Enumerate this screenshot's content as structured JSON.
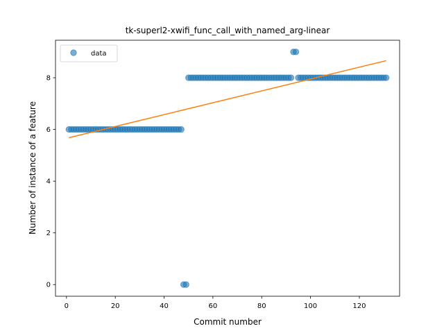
{
  "chart_data": {
    "type": "scatter",
    "title": "tk-superl2-xwifi_func_call_with_named_arg-linear",
    "xlabel": "Commit number",
    "ylabel": "Number of instance of a feature",
    "xlim": [
      -4.5,
      136.5
    ],
    "ylim": [
      -0.45,
      9.45
    ],
    "xticks": [
      0,
      20,
      40,
      60,
      80,
      100,
      120
    ],
    "yticks": [
      0,
      2,
      4,
      6,
      8
    ],
    "grid": false,
    "legend": {
      "placement": "top-left",
      "entries": [
        "data"
      ]
    },
    "colors": {
      "data": "#1f77b4",
      "fit": "#ff7f0e"
    },
    "series": [
      {
        "name": "data",
        "kind": "scatter",
        "segments": [
          {
            "x_start": 1,
            "x_end": 47,
            "y": 6
          },
          {
            "x_start": 48,
            "x_end": 49,
            "y": 0
          },
          {
            "x_start": 50,
            "x_end": 92,
            "y": 8
          },
          {
            "x_start": 93,
            "x_end": 94,
            "y": 9
          },
          {
            "x_start": 95,
            "x_end": 131,
            "y": 8
          }
        ]
      },
      {
        "kind": "line",
        "x": [
          1,
          131
        ],
        "y": [
          5.68,
          8.66
        ]
      }
    ]
  }
}
